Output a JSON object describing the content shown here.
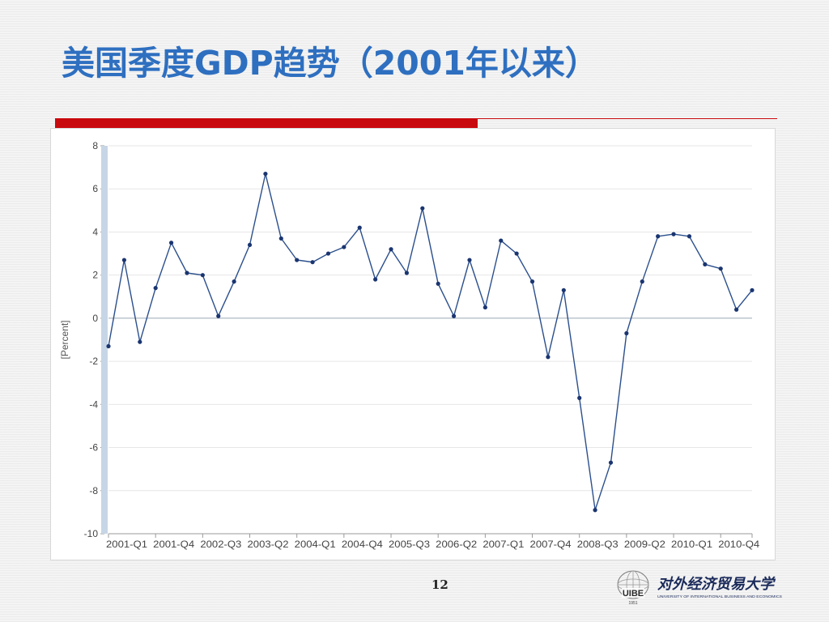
{
  "slide": {
    "title": "美国季度GDP趋势（2001年以来）",
    "page_number": "12",
    "logo": {
      "emblem_text": "UIBE",
      "emblem_year": "1951",
      "calligraphy": "对外经济贸易大学",
      "english": "UNIVERSITY OF INTERNATIONAL BUSINESS AND ECONOMICS"
    }
  },
  "colors": {
    "title": "#2e6fc0",
    "accent_red": "#c8090e",
    "line": "#2b4f8c",
    "marker": "#1a3570",
    "grid": "#e6e6e6",
    "axis_band": "#c6d6e6"
  },
  "chart_data": {
    "type": "line",
    "title": "",
    "xlabel": "",
    "ylabel": "[Percent]",
    "ylim": [
      -10,
      8
    ],
    "yticks": [
      8,
      6,
      4,
      2,
      0,
      -2,
      -4,
      -6,
      -8,
      -10
    ],
    "grid": true,
    "legend": "none",
    "x": [
      "2001-Q1",
      "2001-Q2",
      "2001-Q3",
      "2001-Q4",
      "2002-Q1",
      "2002-Q2",
      "2002-Q3",
      "2002-Q4",
      "2003-Q1",
      "2003-Q2",
      "2003-Q3",
      "2003-Q4",
      "2004-Q1",
      "2004-Q2",
      "2004-Q3",
      "2004-Q4",
      "2005-Q1",
      "2005-Q2",
      "2005-Q3",
      "2005-Q4",
      "2006-Q1",
      "2006-Q2",
      "2006-Q3",
      "2006-Q4",
      "2007-Q1",
      "2007-Q2",
      "2007-Q3",
      "2007-Q4",
      "2008-Q1",
      "2008-Q2",
      "2008-Q3",
      "2008-Q4",
      "2009-Q1",
      "2009-Q2",
      "2009-Q3",
      "2009-Q4",
      "2010-Q1",
      "2010-Q2",
      "2010-Q3",
      "2010-Q4",
      "2011-Q1",
      "2011-Q2"
    ],
    "tick_labels": [
      "2001-Q1",
      "2001-Q4",
      "2002-Q3",
      "2003-Q2",
      "2004-Q1",
      "2004-Q4",
      "2005-Q3",
      "2006-Q2",
      "2007-Q1",
      "2007-Q4",
      "2008-Q3",
      "2009-Q2",
      "2010-Q1",
      "2010-Q4"
    ],
    "series": [
      {
        "values": [
          -1.3,
          2.7,
          -1.1,
          1.4,
          3.5,
          2.1,
          2.0,
          0.1,
          1.7,
          3.4,
          6.7,
          3.7,
          2.7,
          2.6,
          3.0,
          3.3,
          4.2,
          1.8,
          3.2,
          2.1,
          5.1,
          1.6,
          0.1,
          2.7,
          0.5,
          3.6,
          3.0,
          1.7,
          -1.8,
          1.3,
          -3.7,
          -8.9,
          -6.7,
          -0.7,
          1.7,
          3.8,
          3.9,
          3.8,
          2.5,
          2.3,
          0.4,
          1.3
        ]
      }
    ]
  }
}
